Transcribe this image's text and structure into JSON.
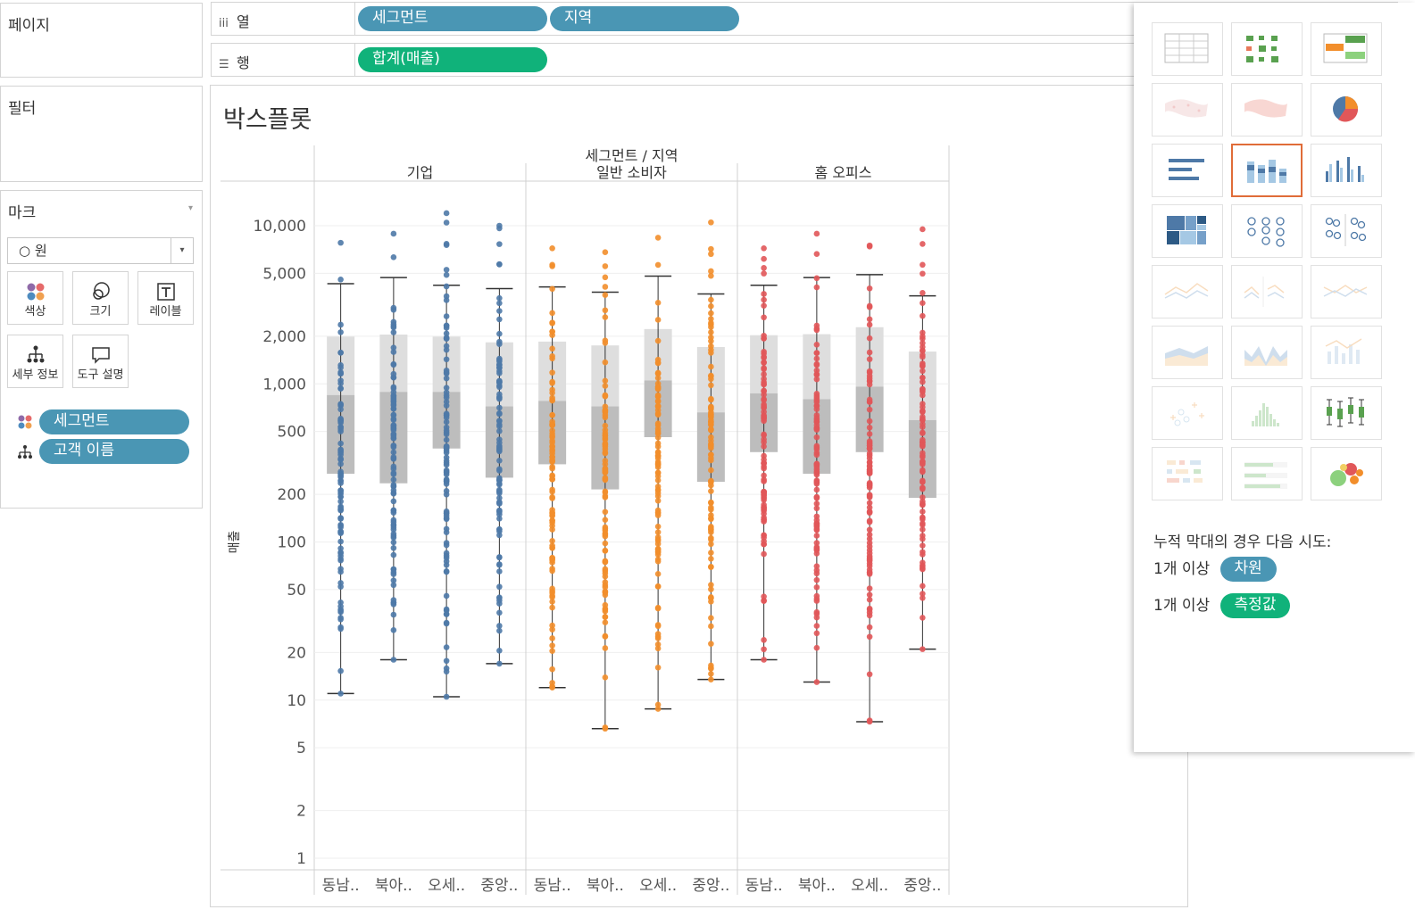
{
  "left": {
    "pages_label": "페이지",
    "filters_label": "필터",
    "marks": {
      "title": "마크",
      "mark_type": "○ 원",
      "buttons": [
        {
          "label": "색상",
          "icon": "color-icon"
        },
        {
          "label": "크기",
          "icon": "size-icon"
        },
        {
          "label": "레이블",
          "icon": "label-icon"
        },
        {
          "label": "세부 정보",
          "icon": "detail-icon"
        },
        {
          "label": "도구 설명",
          "icon": "tooltip-icon"
        }
      ],
      "fields": [
        {
          "label": "세그먼트",
          "icon": "color-dots-icon"
        },
        {
          "label": "고객 이름",
          "icon": "detail-tree-icon"
        }
      ]
    }
  },
  "shelves": {
    "columns": {
      "label": "열",
      "pills": [
        "세그먼트",
        "지역"
      ]
    },
    "rows": {
      "label": "행",
      "pills": [
        "합계(매출)"
      ]
    }
  },
  "viz": {
    "title": "박스플롯"
  },
  "chart_data": {
    "type": "box",
    "column_header": "세그먼트 / 지역",
    "segments": [
      "기업",
      "일반 소비자",
      "홈 오피스"
    ],
    "regions": [
      "동남..",
      "북아..",
      "오세..",
      "중앙.."
    ],
    "ylabel": "매출",
    "yscale": "log",
    "ylim": [
      0.9,
      14000
    ],
    "yticks": [
      1,
      2,
      5,
      10,
      20,
      50,
      100,
      200,
      500,
      1000,
      2000,
      5000,
      10000
    ],
    "ytick_labels": [
      "1",
      "2",
      "5",
      "10",
      "20",
      "50",
      "100",
      "200",
      "500",
      "1,000",
      "2,000",
      "5,000",
      "10,000"
    ],
    "colors": {
      "기업": "#4e79a7",
      "일반 소비자": "#f28e2b",
      "홈 오피스": "#e15759"
    },
    "boxes": [
      {
        "segment": "기업",
        "region": "동남..",
        "min": 11,
        "q1": 270,
        "median": 850,
        "q3": 1990,
        "max": 4300,
        "pmax": 7800
      },
      {
        "segment": "기업",
        "region": "북아..",
        "min": 18,
        "q1": 235,
        "median": 890,
        "q3": 2050,
        "max": 4700,
        "pmax": 8900
      },
      {
        "segment": "기업",
        "region": "오세..",
        "min": 10.5,
        "q1": 390,
        "median": 890,
        "q3": 1990,
        "max": 4200,
        "pmax": 12000
      },
      {
        "segment": "기업",
        "region": "중앙..",
        "min": 17,
        "q1": 255,
        "median": 720,
        "q3": 1830,
        "max": 4000,
        "pmax": 10000
      },
      {
        "segment": "일반 소비자",
        "region": "동남..",
        "min": 12,
        "q1": 310,
        "median": 780,
        "q3": 1850,
        "max": 4100,
        "pmax": 7200
      },
      {
        "segment": "일반 소비자",
        "region": "북아..",
        "min": 6.6,
        "q1": 215,
        "median": 720,
        "q3": 1750,
        "max": 3800,
        "pmax": 6800
      },
      {
        "segment": "일반 소비자",
        "region": "오세..",
        "min": 8.8,
        "q1": 460,
        "median": 1050,
        "q3": 2220,
        "max": 4800,
        "pmax": 8400
      },
      {
        "segment": "일반 소비자",
        "region": "중앙..",
        "min": 13.5,
        "q1": 240,
        "median": 660,
        "q3": 1710,
        "max": 3700,
        "pmax": 10500
      },
      {
        "segment": "홈 오피스",
        "region": "동남..",
        "min": 18,
        "q1": 370,
        "median": 870,
        "q3": 2030,
        "max": 4200,
        "pmax": 7200
      },
      {
        "segment": "홈 오피스",
        "region": "북아..",
        "min": 13,
        "q1": 270,
        "median": 800,
        "q3": 2060,
        "max": 4700,
        "pmax": 8900
      },
      {
        "segment": "홈 오피스",
        "region": "오세..",
        "min": 7.3,
        "q1": 370,
        "median": 960,
        "q3": 2280,
        "max": 4900,
        "pmax": 7500
      },
      {
        "segment": "홈 오피스",
        "region": "중앙..",
        "min": 21,
        "q1": 190,
        "median": 590,
        "q3": 1600,
        "max": 3600,
        "pmax": 9500
      }
    ]
  },
  "showme": {
    "hint_title": "누적 막대의 경우 다음 시도:",
    "hint_rows": [
      {
        "prefix": "1개 이상",
        "pill": "차원",
        "color": "#4a96b4"
      },
      {
        "prefix": "1개 이상",
        "pill": "측정값",
        "color": "#10b27a"
      }
    ],
    "thumbnails": [
      "text-table-icon",
      "heat-map-icon",
      "highlight-table-icon",
      "symbol-map-icon",
      "filled-map-icon",
      "pie-chart-icon",
      "horizontal-bars-icon",
      "stacked-bars-icon",
      "side-by-side-bars-icon",
      "treemap-icon",
      "circle-views-icon",
      "side-by-side-circles-icon",
      "lines-continuous-icon",
      "lines-discrete-icon",
      "dual-lines-icon",
      "area-continuous-icon",
      "area-discrete-icon",
      "dual-combination-icon",
      "scatter-plot-icon",
      "histogram-icon",
      "box-whisker-icon",
      "gantt-chart-icon",
      "bullet-graph-icon",
      "packed-bubbles-icon"
    ],
    "selected_index": 7
  }
}
